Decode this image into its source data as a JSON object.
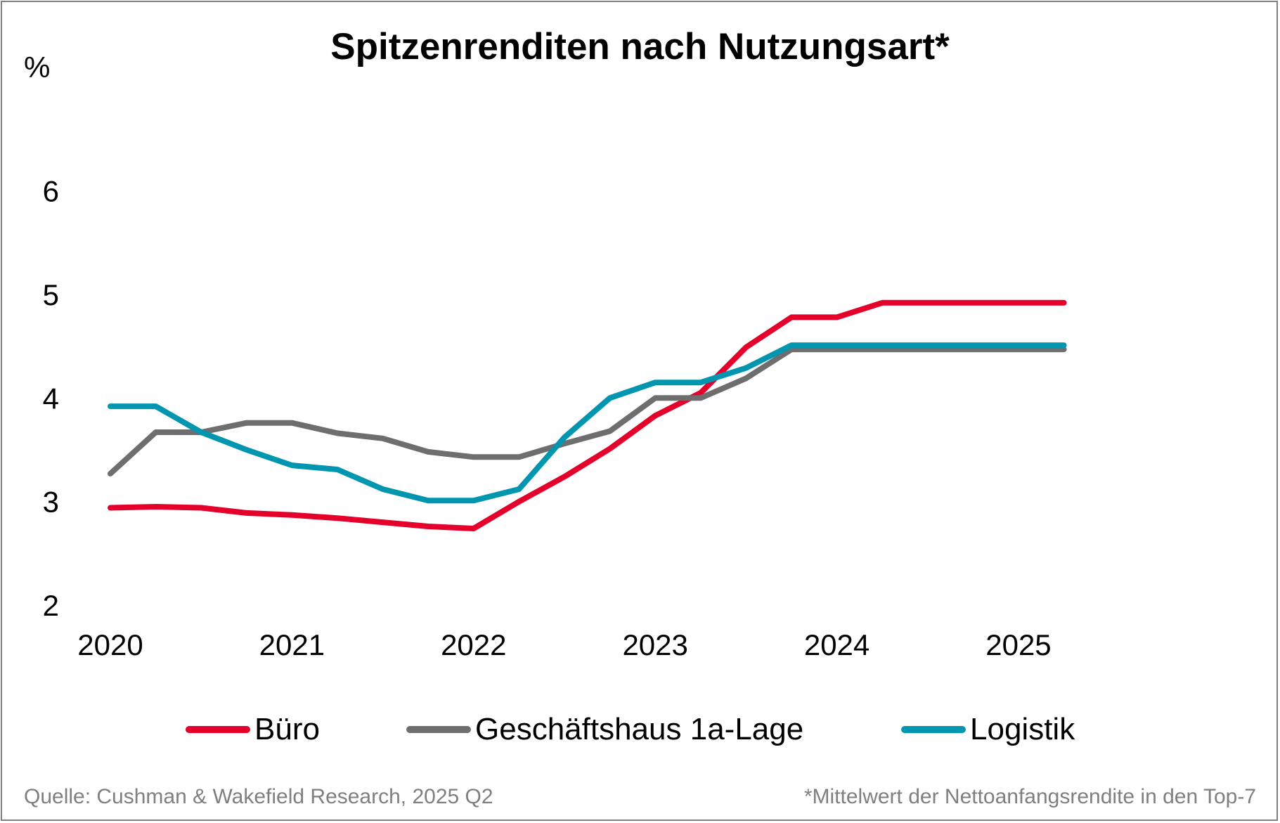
{
  "chart_data": {
    "type": "line",
    "title": "Spitzenrenditen nach Nutzungsart*",
    "ylabel": "%",
    "xlabel": "",
    "ylim": [
      2,
      6.5
    ],
    "yticks": [
      2,
      3,
      4,
      5,
      6
    ],
    "xlim": [
      2020,
      2025.6
    ],
    "xticks": [
      "2020",
      "2021",
      "2022",
      "2023",
      "2024",
      "2025"
    ],
    "x": [
      2020,
      2020.25,
      2020.5,
      2020.75,
      2021,
      2021.25,
      2021.5,
      2021.75,
      2022,
      2022.25,
      2022.5,
      2022.75,
      2023,
      2023.25,
      2023.5,
      2023.75,
      2024,
      2024.25,
      2024.5,
      2024.75,
      2025,
      2025.25
    ],
    "series": [
      {
        "name": "Büro",
        "color": "#e4002b",
        "values": [
          2.94,
          2.95,
          2.94,
          2.89,
          2.87,
          2.84,
          2.8,
          2.76,
          2.74,
          3.0,
          3.24,
          3.51,
          3.83,
          4.05,
          4.49,
          4.78,
          4.78,
          4.92,
          4.92,
          4.92,
          4.92,
          4.92
        ]
      },
      {
        "name": "Geschäftshaus 1a-Lage",
        "color": "#6e6e6e",
        "values": [
          3.27,
          3.67,
          3.67,
          3.76,
          3.76,
          3.66,
          3.61,
          3.48,
          3.43,
          3.43,
          3.56,
          3.68,
          4.0,
          4.0,
          4.19,
          4.47,
          4.47,
          4.47,
          4.47,
          4.47,
          4.47,
          4.47
        ]
      },
      {
        "name": "Logistik",
        "color": "#0096b0",
        "values": [
          3.92,
          3.92,
          3.67,
          3.5,
          3.35,
          3.31,
          3.12,
          3.01,
          3.01,
          3.12,
          3.62,
          4.0,
          4.15,
          4.15,
          4.29,
          4.51,
          4.51,
          4.51,
          4.51,
          4.51,
          4.51,
          4.51
        ]
      }
    ],
    "grid": false,
    "legend_position": "bottom"
  },
  "footer": {
    "source": "Quelle: Cushman & Wakefield Research, 2025 Q2",
    "note": "*Mittelwert der Nettoanfangsrendite in den Top-7"
  }
}
